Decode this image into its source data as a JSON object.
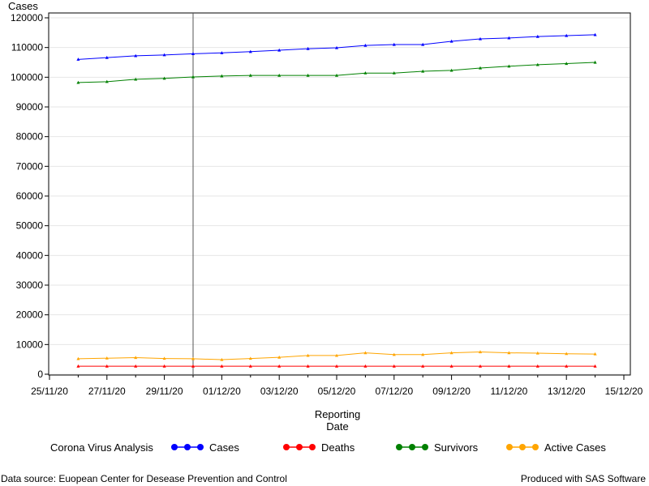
{
  "chart_data": {
    "type": "line",
    "ylabel": "Cases",
    "xlabel_lines": [
      "Reporting",
      "Date"
    ],
    "legend_title": "Corona Virus Analysis",
    "legend_position": "bottom",
    "grid": "horizontal",
    "ylim": [
      0,
      120000
    ],
    "yticks": [
      0,
      10000,
      20000,
      30000,
      40000,
      50000,
      60000,
      70000,
      80000,
      90000,
      100000,
      110000,
      120000
    ],
    "xlim": [
      "2020-11-25",
      "2020-12-15"
    ],
    "xtick_labels": [
      "25/11/20",
      "27/11/20",
      "29/11/20",
      "01/12/20",
      "03/12/20",
      "05/12/20",
      "07/12/20",
      "09/12/20",
      "11/12/20",
      "13/12/20",
      "15/12/20"
    ],
    "xtick_dates": [
      "2020-11-25",
      "2020-11-27",
      "2020-11-29",
      "2020-12-01",
      "2020-12-03",
      "2020-12-05",
      "2020-12-07",
      "2020-12-09",
      "2020-12-11",
      "2020-12-13",
      "2020-12-15"
    ],
    "reference_line_date": "2020-11-30",
    "x": [
      "2020-11-26",
      "2020-11-27",
      "2020-11-28",
      "2020-11-29",
      "2020-11-30",
      "2020-12-01",
      "2020-12-02",
      "2020-12-03",
      "2020-12-04",
      "2020-12-05",
      "2020-12-06",
      "2020-12-07",
      "2020-12-08",
      "2020-12-09",
      "2020-12-10",
      "2020-12-11",
      "2020-12-12",
      "2020-12-13",
      "2020-12-14"
    ],
    "series": [
      {
        "name": "Cases",
        "color": "#0000ff",
        "values": [
          106000,
          106600,
          107200,
          107500,
          107900,
          108200,
          108600,
          109100,
          109600,
          109900,
          110700,
          111000,
          111000,
          112100,
          112900,
          113200,
          113700,
          114000,
          114300
        ]
      },
      {
        "name": "Deaths",
        "color": "#ff0000",
        "values": [
          2700,
          2700,
          2700,
          2700,
          2700,
          2700,
          2700,
          2700,
          2700,
          2700,
          2700,
          2700,
          2700,
          2700,
          2700,
          2700,
          2700,
          2700,
          2700
        ]
      },
      {
        "name": "Survivors",
        "color": "#008000",
        "values": [
          98200,
          98500,
          99300,
          99600,
          100100,
          100400,
          100600,
          100600,
          100600,
          100600,
          101400,
          101400,
          102000,
          102300,
          103100,
          103700,
          104200,
          104600,
          105000
        ]
      },
      {
        "name": "Active Cases",
        "color": "#ffa500",
        "values": [
          5200,
          5400,
          5600,
          5300,
          5200,
          4900,
          5300,
          5700,
          6300,
          6300,
          7200,
          6600,
          6600,
          7200,
          7500,
          7200,
          7100,
          6900,
          6800
        ]
      }
    ]
  },
  "footnote_left": "Data source: Euopean Center for Desease Prevention and Control",
  "footnote_right": "Produced with SAS Software"
}
